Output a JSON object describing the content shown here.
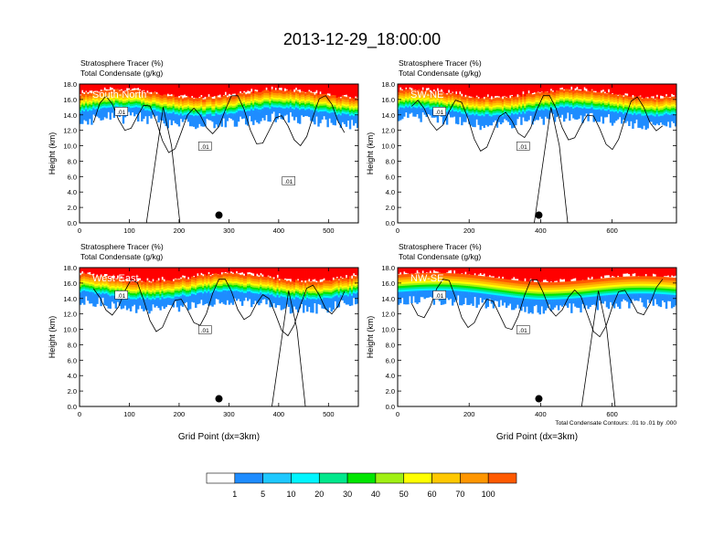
{
  "figure_title": "2013-12-29_18:00:00",
  "colors": {
    "levels": [
      "#ffffff",
      "#1e8cff",
      "#1ec8ff",
      "#00f5ff",
      "#00e88c",
      "#00e600",
      "#a0f014",
      "#ffff00",
      "#ffc800",
      "#ff9600",
      "#ff5a00",
      "#ff0000"
    ],
    "contour": "#000000"
  },
  "colorbar": {
    "labels": [
      "1",
      "5",
      "10",
      "20",
      "30",
      "40",
      "50",
      "60",
      "70",
      "100"
    ]
  },
  "chart_data": [
    {
      "type": "heatmap",
      "panel_label": "South-North",
      "title_line1": "Stratosphere Tracer   (%)",
      "title_line2": "Total Condensate   (g/kg)",
      "ylabel": "Height (km)",
      "xlabel": "",
      "xlim": [
        0,
        560
      ],
      "ylim": [
        0,
        18
      ],
      "xticks": [
        0,
        100,
        200,
        300,
        400,
        500
      ],
      "yticks": [
        "0.0",
        "2.0",
        "4.0",
        "6.0",
        "8.0",
        "10.0",
        "12.0",
        "14.0",
        "16.0",
        "18.0"
      ],
      "contour_labels": [
        ".01",
        ".01",
        ".01"
      ],
      "marker_x": 280,
      "notes": ""
    },
    {
      "type": "heatmap",
      "panel_label": "SW-NE",
      "title_line1": "Stratosphere Tracer   (%)",
      "title_line2": "Total Condensate   (g/kg)",
      "ylabel": "Height (km)",
      "xlabel": "",
      "xlim": [
        0,
        780
      ],
      "ylim": [
        0,
        18
      ],
      "xticks": [
        0,
        200,
        400,
        600
      ],
      "yticks": [
        "0.0",
        "2.0",
        "4.0",
        "6.0",
        "8.0",
        "10.0",
        "12.0",
        "14.0",
        "16.0",
        "18.0"
      ],
      "contour_labels": [
        ".01",
        ".01"
      ],
      "marker_x": 395,
      "notes": ""
    },
    {
      "type": "heatmap",
      "panel_label": "West-East",
      "title_line1": "Stratosphere Tracer   (%)",
      "title_line2": "Total Condensate   (g/kg)",
      "ylabel": "Height (km)",
      "xlabel": "Grid Point (dx=3km)",
      "xlim": [
        0,
        560
      ],
      "ylim": [
        0,
        18
      ],
      "xticks": [
        0,
        100,
        200,
        300,
        400,
        500
      ],
      "yticks": [
        "0.0",
        "2.0",
        "4.0",
        "6.0",
        "8.0",
        "10.0",
        "12.0",
        "14.0",
        "16.0",
        "18.0"
      ],
      "contour_labels": [
        ".01",
        ".01"
      ],
      "marker_x": 280,
      "notes": ""
    },
    {
      "type": "heatmap",
      "panel_label": "NW-SE",
      "title_line1": "Stratosphere Tracer   (%)",
      "title_line2": "Total Condensate   (g/kg)",
      "ylabel": "Height (km)",
      "xlabel": "Grid Point (dx=3km)",
      "xlim": [
        0,
        780
      ],
      "ylim": [
        0,
        18
      ],
      "xticks": [
        0,
        200,
        400,
        600
      ],
      "yticks": [
        "0.0",
        "2.0",
        "4.0",
        "6.0",
        "8.0",
        "10.0",
        "12.0",
        "14.0",
        "16.0",
        "18.0"
      ],
      "contour_labels": [
        ".01",
        ".01"
      ],
      "marker_x": 395,
      "notes": "Total Condensate Contours: .01 to .01 by .000"
    }
  ]
}
